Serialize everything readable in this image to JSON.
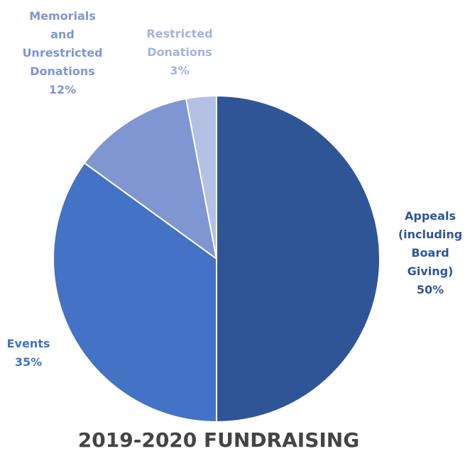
{
  "chart_data": {
    "type": "pie",
    "title": "2019-2020 FUNDRAISING",
    "start_angle_deg": 0,
    "direction": "clockwise",
    "slices": [
      {
        "name": "Appeals (including Board Giving)",
        "label_lines": [
          "Appeals",
          "(including",
          "Board",
          "Giving)",
          "50%"
        ],
        "value": 50,
        "color": "#2F5597",
        "label_color": "#2F5597"
      },
      {
        "name": "Events",
        "label_lines": [
          "Events",
          "35%"
        ],
        "value": 35,
        "color": "#4472C4",
        "label_color": "#4472C4"
      },
      {
        "name": "Memorials and Unrestricted Donations",
        "label_lines": [
          "Memorials",
          "and",
          "Unrestricted",
          "Donations",
          "12%"
        ],
        "value": 12,
        "color": "#7F96D3",
        "label_color": "#7F96D3"
      },
      {
        "name": "Restricted Donations",
        "label_lines": [
          "Restricted",
          "Donations",
          "3%"
        ],
        "value": 3,
        "color": "#B4C1E5",
        "label_color": "#A3B4E0"
      }
    ]
  }
}
